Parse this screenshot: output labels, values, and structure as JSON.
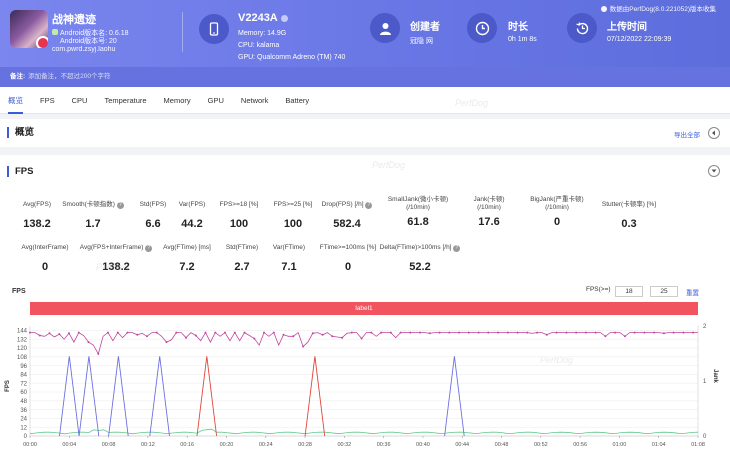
{
  "app": {
    "name": "战神遗迹",
    "android_version": "Android版本名: 0.6.18",
    "android_code": "Android版本号: 20",
    "package": "com.pwrd.zsyj.laohu"
  },
  "device": {
    "name": "V2243A",
    "memory": "Memory: 14.9G",
    "cpu": "CPU: kalama",
    "gpu": "GPU: Qualcomm Adreno (TM) 740"
  },
  "creator": {
    "title": "创建者",
    "value": "冠隐 网"
  },
  "duration": {
    "title": "时长",
    "value": "0h 1m 8s"
  },
  "upload": {
    "title": "上传时间",
    "value": "07/12/2022 22:09:39"
  },
  "version_note": "数据由PerfDog(8.0.221052)版本收集",
  "remark": {
    "label": "备注:",
    "placeholder": "添加备注，不超过200个字符"
  },
  "tabs": [
    {
      "label": "概览"
    },
    {
      "label": "FPS"
    },
    {
      "label": "CPU"
    },
    {
      "label": "Temperature"
    },
    {
      "label": "Memory"
    },
    {
      "label": "GPU"
    },
    {
      "label": "Network"
    },
    {
      "label": "Battery"
    }
  ],
  "overview": {
    "title": "概览",
    "export": "导出全部"
  },
  "fps_section": {
    "title": "FPS",
    "row1": [
      {
        "label": "Avg(FPS)",
        "value": "138.2"
      },
      {
        "label": "Smooth(卡顿指数)",
        "value": "1.7",
        "help": true
      },
      {
        "label": "Std(FPS)",
        "value": "6.6"
      },
      {
        "label": "Var(FPS)",
        "value": "44.2"
      },
      {
        "label": "FPS>=18 [%]",
        "value": "100"
      },
      {
        "label": "FPS>=25 [%]",
        "value": "100"
      },
      {
        "label": "Drop(FPS) [/h]",
        "value": "582.4",
        "help": true
      },
      {
        "label": "SmallJank(微小卡顿)",
        "label2": "(/10min)",
        "value": "61.8",
        "help": true
      },
      {
        "label": "Jank(卡顿)",
        "label2": "(/10min)",
        "value": "17.6",
        "help": true
      },
      {
        "label": "BigJank(严重卡顿)",
        "label2": "(/10min)",
        "value": "0",
        "help": true
      },
      {
        "label": "Stutter(卡顿率) [%]",
        "value": "0.3"
      }
    ],
    "row2": [
      {
        "label": "Avg(InterFrame)",
        "value": "0"
      },
      {
        "label": "Avg(FPS+InterFrame)",
        "value": "138.2",
        "help": true
      },
      {
        "label": "Avg(FTime) [ms]",
        "value": "7.2"
      },
      {
        "label": "Std(FTime)",
        "value": "2.7"
      },
      {
        "label": "Var(FTime)",
        "value": "7.1"
      },
      {
        "label": "FTime>=100ms [%]",
        "value": "0"
      },
      {
        "label": "Delta(FTime)>100ms [/h]",
        "value": "52.2",
        "help": true
      }
    ],
    "chart_title": "FPS",
    "filter_label": "FPS(>=)",
    "filter_values": [
      "18",
      "25"
    ],
    "reset": "重置",
    "label_bar": "label1"
  },
  "chart_data": {
    "type": "line",
    "ylabel": "FPS",
    "y2label": "Jank",
    "y_ticks": [
      "0",
      "12",
      "24",
      "36",
      "48",
      "60",
      "72",
      "84",
      "96",
      "108",
      "120",
      "132",
      "144"
    ],
    "y2_ticks": [
      "0",
      "1",
      "2"
    ],
    "ylim": [
      0,
      150
    ],
    "y2lim": [
      0,
      2
    ],
    "x_ticks": [
      "00:00",
      "00:04",
      "00:08",
      "00:12",
      "00:16",
      "00:20",
      "00:24",
      "00:28",
      "00:32",
      "00:36",
      "00:40",
      "00:44",
      "00:48",
      "00:52",
      "00:56",
      "01:00",
      "01:04",
      "01:08"
    ],
    "fps": [
      141,
      141,
      137,
      136,
      140,
      135,
      139,
      132,
      140,
      128,
      141,
      137,
      128,
      124,
      112,
      136,
      141,
      130,
      141,
      134,
      141,
      141,
      138,
      140,
      136,
      141,
      141,
      136,
      128,
      131,
      141,
      141,
      134,
      141,
      137,
      130,
      141,
      128,
      141,
      136,
      141,
      130,
      141,
      130,
      141,
      137,
      133,
      124,
      141,
      136,
      141,
      124,
      138,
      136,
      136,
      141,
      122,
      128,
      140,
      141,
      138,
      141,
      136,
      135,
      134,
      140,
      141,
      141,
      133,
      141,
      141,
      136,
      141,
      141,
      141,
      134,
      141,
      141,
      141,
      141,
      141,
      141,
      140,
      141,
      141,
      141,
      141,
      141,
      141,
      141,
      141,
      141,
      141,
      141,
      141,
      141,
      141,
      141,
      141,
      141,
      141,
      141,
      141,
      140,
      141,
      141,
      138,
      141,
      141,
      141,
      141,
      141,
      141,
      141,
      141,
      141,
      141,
      141,
      136,
      141,
      141,
      141,
      136,
      141,
      141,
      141,
      141,
      141,
      141,
      141,
      140,
      141,
      141,
      141,
      141,
      141,
      141,
      141
    ],
    "small_jank_peaks": [
      4.0,
      6.0,
      9.0,
      13.2,
      43.2
    ],
    "jank_peaks": [
      18.0,
      29.0
    ],
    "jank_peak_value": 1.45,
    "green_wave": true
  }
}
